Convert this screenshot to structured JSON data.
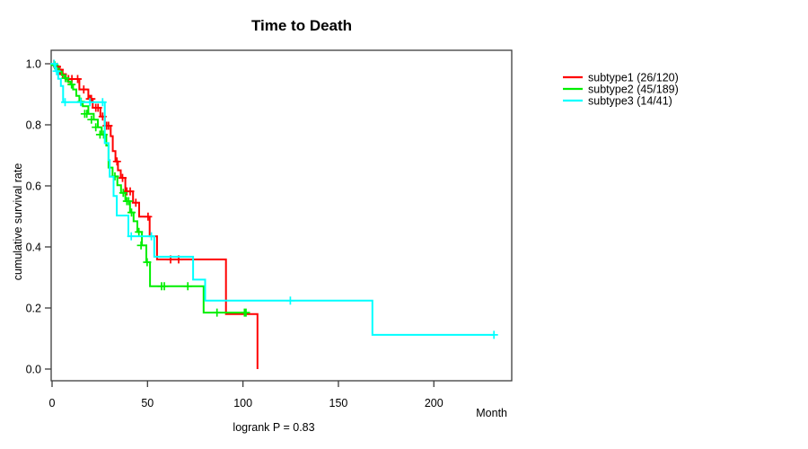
{
  "chart_data": {
    "type": "line",
    "subtype": "kaplan-meier-step",
    "title": "Time to Death",
    "xlabel": "Month",
    "ylabel": "cumulative survival rate",
    "annotation": "logrank P = 0.83",
    "grid": false,
    "legend_position": "right-outside",
    "xlim": [
      -0.47,
      240.8
    ],
    "ylim": [
      -0.0383,
      1.0441
    ],
    "x_ticks": [
      0,
      50,
      100,
      150,
      200
    ],
    "x_tick_labels": [
      "0",
      "50",
      "100",
      "150",
      "200"
    ],
    "y_ticks": [
      0.0,
      0.2,
      0.4,
      0.6,
      0.8,
      1.0
    ],
    "y_tick_labels": [
      "0.0",
      "0.2",
      "0.4",
      "0.6",
      "0.8",
      "1.0"
    ],
    "series": [
      {
        "name": "subtype1",
        "label": "subtype1 (26/120)",
        "events_over_n": "26/120",
        "color": "#ff0000",
        "end": 107.6,
        "steps": [
          [
            0,
            1.0
          ],
          [
            1.7,
            0.99
          ],
          [
            3.3,
            0.981
          ],
          [
            4.8,
            0.966
          ],
          [
            7.2,
            0.95
          ],
          [
            14.3,
            0.916
          ],
          [
            19,
            0.885
          ],
          [
            21.3,
            0.856
          ],
          [
            25.3,
            0.827
          ],
          [
            27.6,
            0.797
          ],
          [
            30.7,
            0.763
          ],
          [
            31.8,
            0.714
          ],
          [
            33.2,
            0.68
          ],
          [
            34.5,
            0.651
          ],
          [
            36,
            0.626
          ],
          [
            38.4,
            0.582
          ],
          [
            42.4,
            0.545
          ],
          [
            45.6,
            0.499
          ],
          [
            51.1,
            0.435
          ],
          [
            55,
            0.359
          ],
          [
            91.1,
            0.18
          ],
          [
            107.6,
            0.0
          ]
        ],
        "censors": [
          [
            1,
            1.0
          ],
          [
            2.6,
            0.99
          ],
          [
            4,
            0.981
          ],
          [
            5.6,
            0.966
          ],
          [
            8.6,
            0.95
          ],
          [
            10.4,
            0.95
          ],
          [
            13.4,
            0.95
          ],
          [
            16.6,
            0.916
          ],
          [
            19.8,
            0.885
          ],
          [
            20.6,
            0.885
          ],
          [
            22.9,
            0.856
          ],
          [
            24.1,
            0.856
          ],
          [
            26.5,
            0.827
          ],
          [
            28.6,
            0.797
          ],
          [
            29.6,
            0.797
          ],
          [
            34,
            0.68
          ],
          [
            36.9,
            0.626
          ],
          [
            39.2,
            0.582
          ],
          [
            40.9,
            0.582
          ],
          [
            43.9,
            0.545
          ],
          [
            50.3,
            0.499
          ],
          [
            62.1,
            0.359
          ],
          [
            66.3,
            0.359
          ]
        ]
      },
      {
        "name": "subtype2",
        "label": "subtype2 (45/189)",
        "events_over_n": "45/189",
        "color": "#00ee00",
        "end": 101.6,
        "steps": [
          [
            0,
            1.0
          ],
          [
            0.9,
            0.995
          ],
          [
            2.1,
            0.984
          ],
          [
            3.6,
            0.974
          ],
          [
            5.1,
            0.963
          ],
          [
            6.6,
            0.953
          ],
          [
            8.1,
            0.942
          ],
          [
            9.6,
            0.932
          ],
          [
            11,
            0.916
          ],
          [
            12.7,
            0.895
          ],
          [
            14.3,
            0.876
          ],
          [
            16.1,
            0.861
          ],
          [
            19,
            0.836
          ],
          [
            21.8,
            0.817
          ],
          [
            24,
            0.792
          ],
          [
            26,
            0.768
          ],
          [
            28.4,
            0.732
          ],
          [
            29.6,
            0.66
          ],
          [
            31.7,
            0.631
          ],
          [
            34.2,
            0.602
          ],
          [
            36.1,
            0.577
          ],
          [
            38.4,
            0.55
          ],
          [
            40.8,
            0.513
          ],
          [
            42.7,
            0.484
          ],
          [
            44.7,
            0.449
          ],
          [
            47.1,
            0.405
          ],
          [
            49.4,
            0.35
          ],
          [
            51.3,
            0.271
          ],
          [
            79.4,
            0.185
          ]
        ],
        "censors": [
          [
            1.4,
            0.995
          ],
          [
            7,
            0.953
          ],
          [
            10.2,
            0.932
          ],
          [
            15.2,
            0.876
          ],
          [
            17.1,
            0.836
          ],
          [
            18.2,
            0.836
          ],
          [
            20.6,
            0.817
          ],
          [
            22.9,
            0.792
          ],
          [
            25.1,
            0.768
          ],
          [
            27,
            0.768
          ],
          [
            32.9,
            0.631
          ],
          [
            37.3,
            0.577
          ],
          [
            39.2,
            0.55
          ],
          [
            40.1,
            0.55
          ],
          [
            41.6,
            0.513
          ],
          [
            45.5,
            0.449
          ],
          [
            46.6,
            0.405
          ],
          [
            49.8,
            0.35
          ],
          [
            57.4,
            0.271
          ],
          [
            58.8,
            0.271
          ],
          [
            71.1,
            0.271
          ],
          [
            86.4,
            0.185
          ],
          [
            100.8,
            0.185
          ],
          [
            101.6,
            0.185
          ]
        ]
      },
      {
        "name": "subtype3",
        "label": "subtype3 (14/41)",
        "events_over_n": "14/41",
        "color": "#00ffff",
        "end": 231.5,
        "steps": [
          [
            0,
            1.0
          ],
          [
            1.8,
            0.976
          ],
          [
            3.2,
            0.951
          ],
          [
            4.6,
            0.927
          ],
          [
            5.8,
            0.874
          ],
          [
            27.6,
            0.74
          ],
          [
            29.6,
            0.684
          ],
          [
            30.2,
            0.63
          ],
          [
            32.2,
            0.567
          ],
          [
            33.9,
            0.503
          ],
          [
            40,
            0.435
          ],
          [
            53.5,
            0.368
          ],
          [
            73.9,
            0.293
          ],
          [
            80.2,
            0.224
          ],
          [
            167.8,
            0.112
          ]
        ],
        "censors": [
          [
            1.1,
            1.0
          ],
          [
            2.4,
            0.976
          ],
          [
            6.8,
            0.874
          ],
          [
            15,
            0.874
          ],
          [
            19.8,
            0.874
          ],
          [
            26.5,
            0.874
          ],
          [
            41.5,
            0.435
          ],
          [
            52,
            0.435
          ],
          [
            124.8,
            0.224
          ],
          [
            231.5,
            0.112
          ]
        ]
      }
    ]
  }
}
